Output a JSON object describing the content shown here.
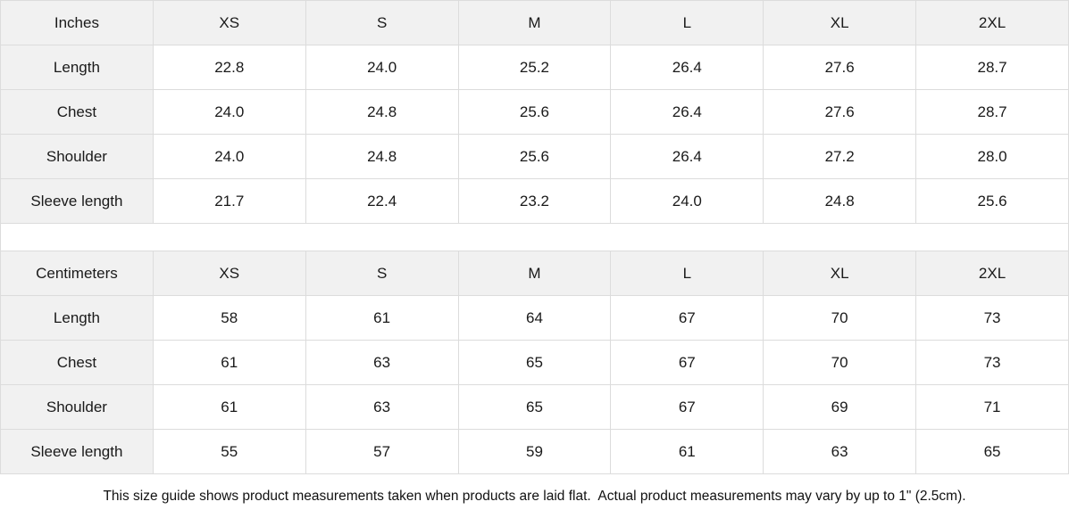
{
  "tables": [
    {
      "unit_label": "Inches",
      "sizes": [
        "XS",
        "S",
        "M",
        "L",
        "XL",
        "2XL"
      ],
      "rows": [
        {
          "label": "Length",
          "values": [
            "22.8",
            "24.0",
            "25.2",
            "26.4",
            "27.6",
            "28.7"
          ]
        },
        {
          "label": "Chest",
          "values": [
            "24.0",
            "24.8",
            "25.6",
            "26.4",
            "27.6",
            "28.7"
          ]
        },
        {
          "label": "Shoulder",
          "values": [
            "24.0",
            "24.8",
            "25.6",
            "26.4",
            "27.2",
            "28.0"
          ]
        },
        {
          "label": "Sleeve length",
          "values": [
            "21.7",
            "22.4",
            "23.2",
            "24.0",
            "24.8",
            "25.6"
          ]
        }
      ]
    },
    {
      "unit_label": "Centimeters",
      "sizes": [
        "XS",
        "S",
        "M",
        "L",
        "XL",
        "2XL"
      ],
      "rows": [
        {
          "label": "Length",
          "values": [
            "58",
            "61",
            "64",
            "67",
            "70",
            "73"
          ]
        },
        {
          "label": "Chest",
          "values": [
            "61",
            "63",
            "65",
            "67",
            "70",
            "73"
          ]
        },
        {
          "label": "Shoulder",
          "values": [
            "61",
            "63",
            "65",
            "67",
            "69",
            "71"
          ]
        },
        {
          "label": "Sleeve length",
          "values": [
            "55",
            "57",
            "59",
            "61",
            "63",
            "65"
          ]
        }
      ]
    }
  ],
  "footer": {
    "note": "This size guide shows product measurements taken when products are laid flat.  Actual product measurements may vary by up to 1\" (2.5cm)."
  },
  "colors": {
    "header_bg": "#f1f1f1",
    "border": "#dcdcdc",
    "text": "#1a1a1a"
  }
}
